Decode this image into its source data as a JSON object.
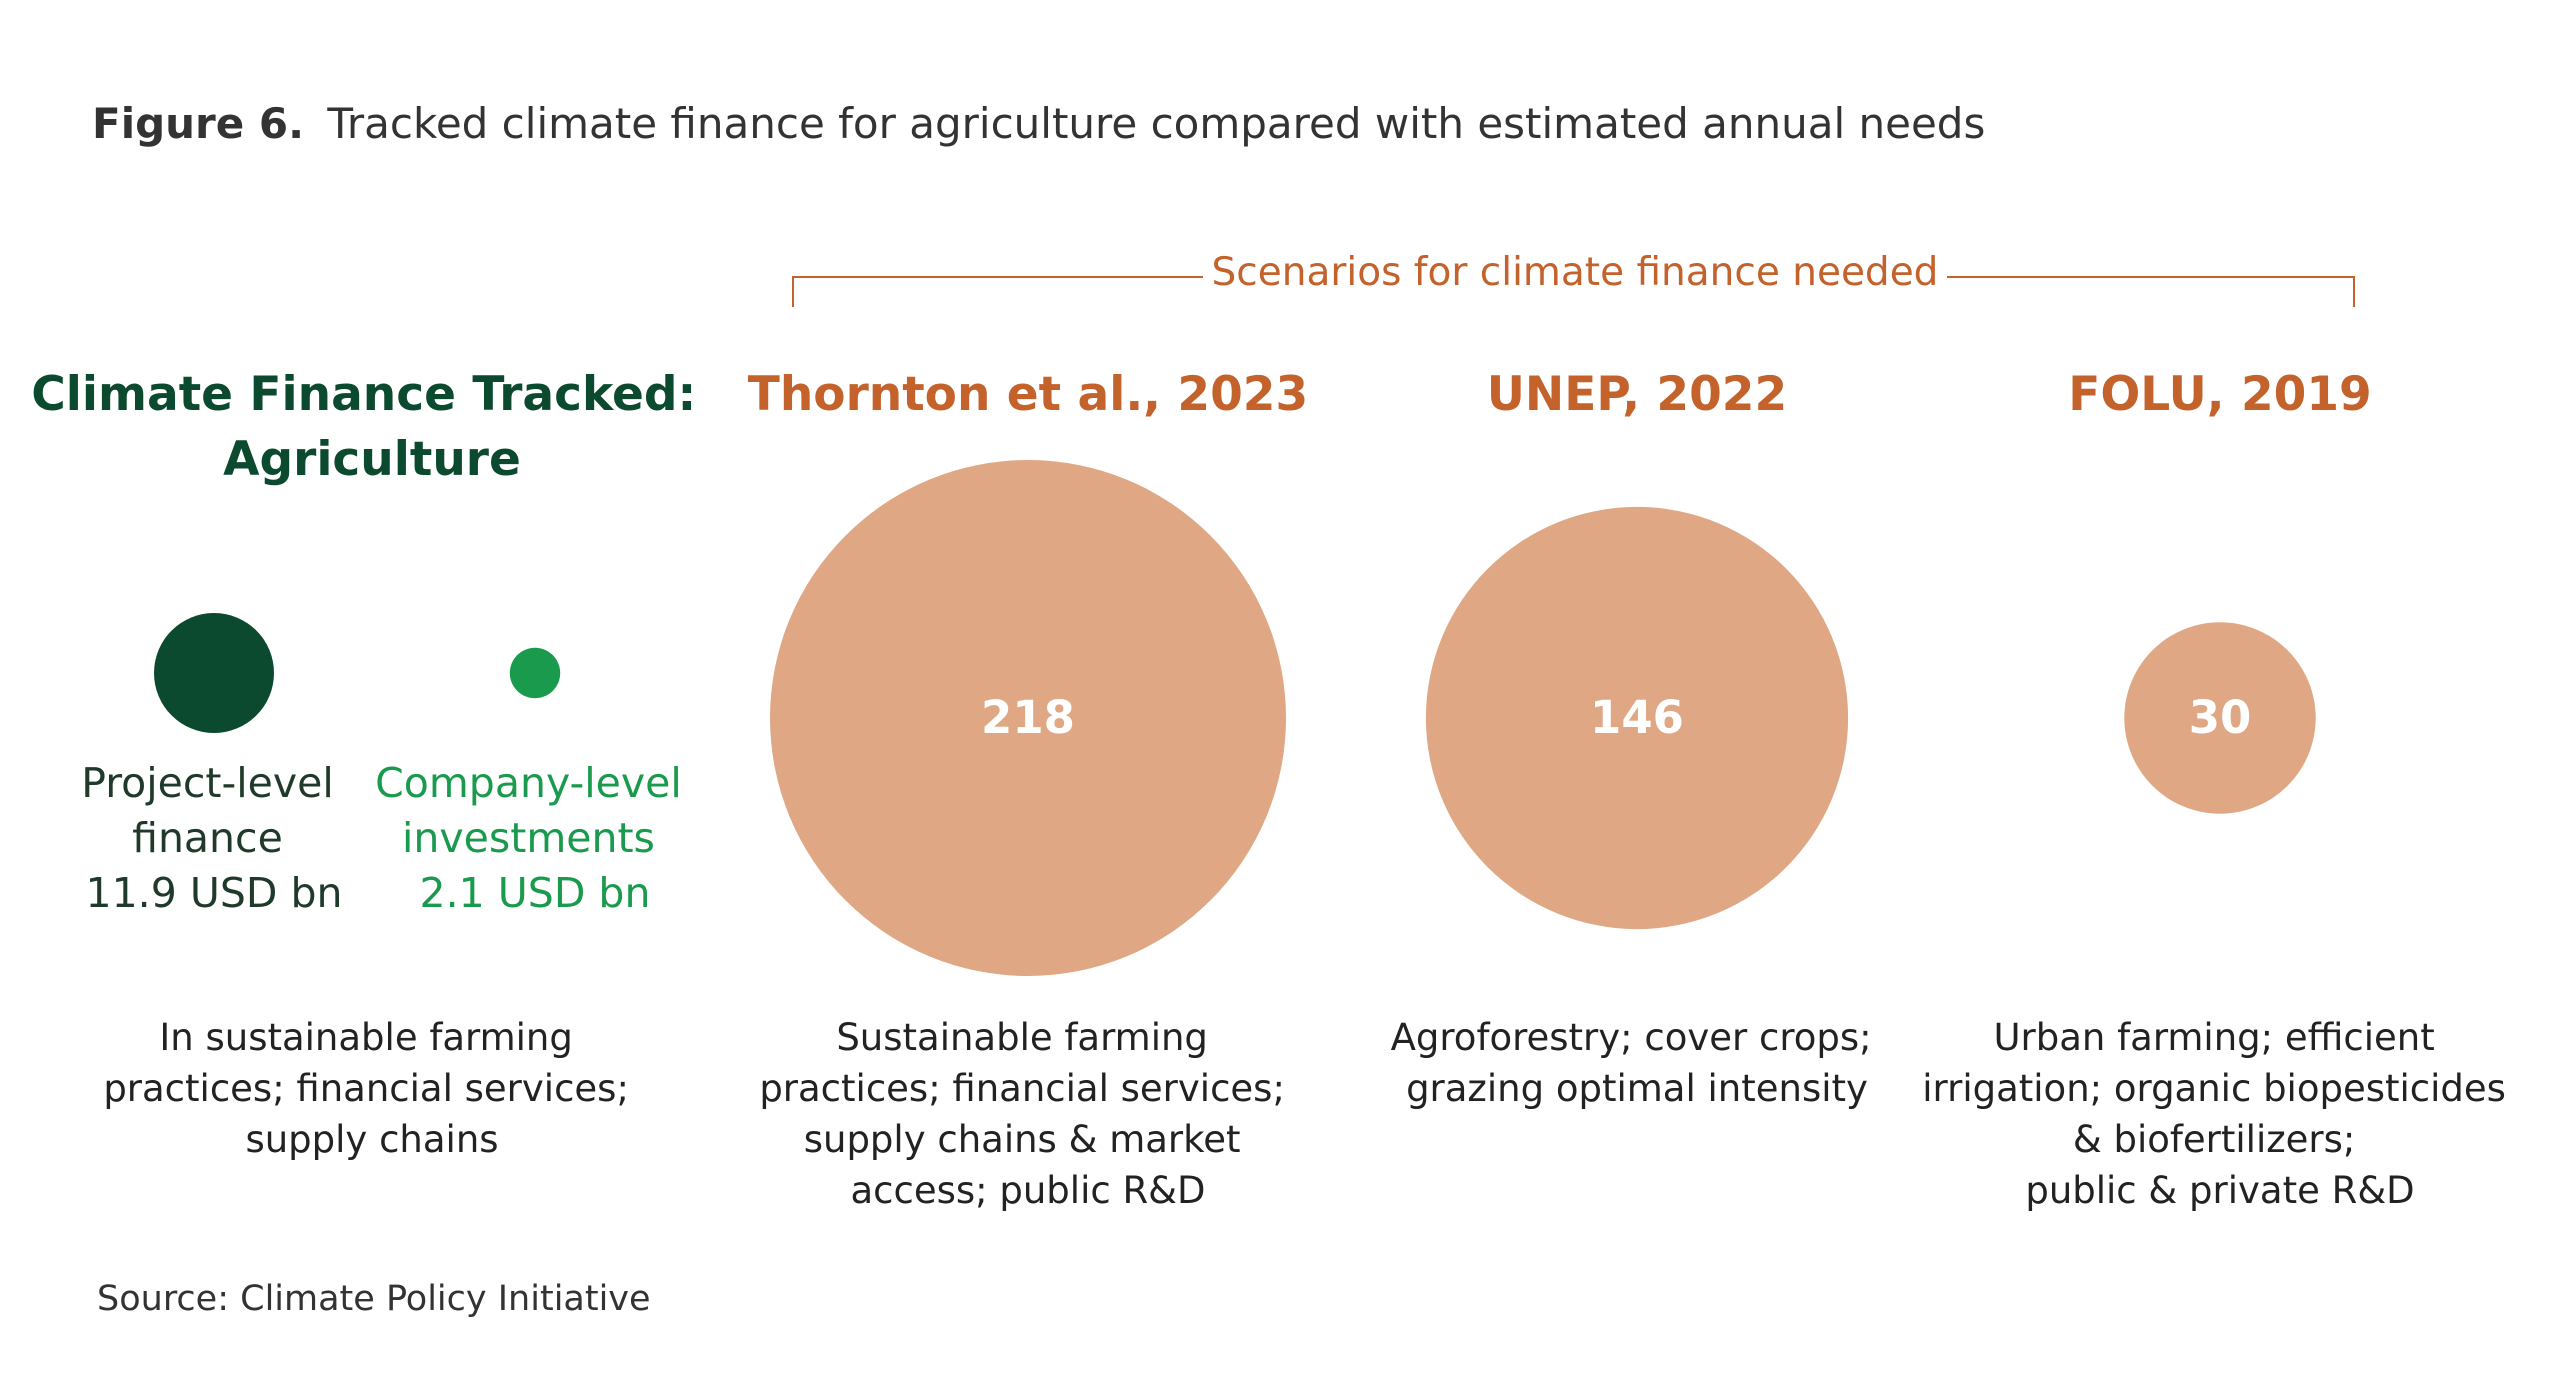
{
  "figure": {
    "label": "Figure 6.",
    "title": "Tracked climate finance for agriculture compared with estimated annual needs",
    "source": "Source: Climate Policy Initiative"
  },
  "colors": {
    "dark_green": "#0b4a2f",
    "green": "#1a9a4c",
    "orange_text": "#c4622c",
    "orange_fill": "#dfa784",
    "text": "#222222",
    "bracket": "#c4622c"
  },
  "chart_data": {
    "type": "bubble",
    "tracked": {
      "heading": [
        "Climate Finance Tracked:",
        "Agriculture"
      ],
      "description": [
        "In sustainable farming",
        "practices; financial services;",
        "supply chains"
      ],
      "items": [
        {
          "label": [
            "Project-level",
            "finance"
          ],
          "value": 11.9,
          "value_label": "11.9 USD bn"
        },
        {
          "label": [
            "Company-level",
            "investments"
          ],
          "value": 2.1,
          "value_label": "2.1 USD bn"
        }
      ]
    },
    "needs": {
      "bracket_label": "Scenarios for climate finance needed",
      "series": [
        {
          "name": "Thornton et al., 2023",
          "value": 218,
          "value_label": "218",
          "description": [
            "Sustainable farming",
            "practices; financial services;",
            "supply chains & market",
            "access; public R&D"
          ]
        },
        {
          "name": "UNEP, 2022",
          "value": 146,
          "value_label": "146",
          "description": [
            "Agroforestry; cover crops;",
            "grazing optimal intensity"
          ]
        },
        {
          "name": "FOLU, 2019",
          "value": 30,
          "value_label": "30",
          "description": [
            "Urban farming; efficient",
            "irrigation; organic biopesticides",
            "& biofertilizers;",
            "public & private R&D"
          ]
        }
      ]
    }
  }
}
